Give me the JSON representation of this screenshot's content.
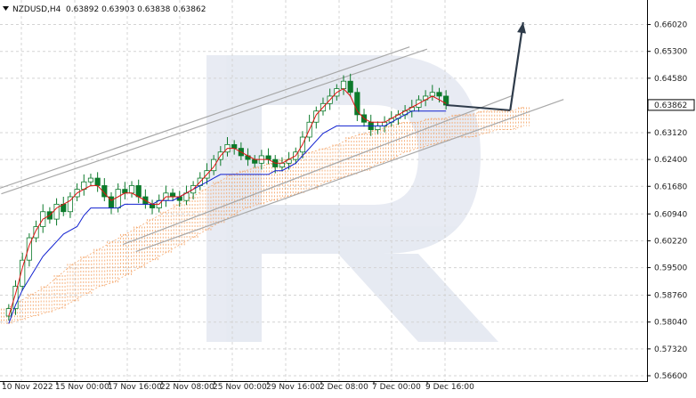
{
  "header": {
    "symbol": "NZDUSD,H4",
    "ohlc": "0.63892 0.63903 0.63838 0.63862"
  },
  "chart_data": {
    "type": "candlestick",
    "title": "NZDUSD,H4",
    "ylim": [
      0.566,
      0.662
    ],
    "y_ticks": [
      "0.66020",
      "0.65300",
      "0.64580",
      "0.63862",
      "0.63120",
      "0.62400",
      "0.61680",
      "0.60940",
      "0.60220",
      "0.59500",
      "0.58760",
      "0.58040",
      "0.57320",
      "0.56600"
    ],
    "y_tick_values": [
      0.6602,
      0.653,
      0.6458,
      0.63862,
      0.6312,
      0.624,
      0.6168,
      0.6094,
      0.6022,
      0.595,
      0.5876,
      0.5804,
      0.5732,
      0.566
    ],
    "current_price": "0.63862",
    "x_ticks": [
      "10 Nov 2022",
      "15 Nov 00:00",
      "17 Nov 16:00",
      "22 Nov 08:00",
      "25 Nov 00:00",
      "29 Nov 16:00",
      "2 Dec 08:00",
      "7 Dec 00:00",
      "9 Dec 16:00"
    ],
    "close_path": [
      0.584,
      0.59,
      0.597,
      0.603,
      0.606,
      0.61,
      0.608,
      0.612,
      0.61,
      0.614,
      0.616,
      0.618,
      0.619,
      0.617,
      0.614,
      0.611,
      0.616,
      0.615,
      0.617,
      0.614,
      0.612,
      0.611,
      0.613,
      0.615,
      0.614,
      0.613,
      0.615,
      0.617,
      0.619,
      0.621,
      0.624,
      0.626,
      0.628,
      0.627,
      0.625,
      0.624,
      0.623,
      0.625,
      0.624,
      0.622,
      0.623,
      0.624,
      0.626,
      0.63,
      0.634,
      0.637,
      0.639,
      0.641,
      0.643,
      0.645,
      0.642,
      0.636,
      0.634,
      0.632,
      0.633,
      0.634,
      0.635,
      0.636,
      0.637,
      0.638,
      0.64,
      0.641,
      0.642,
      0.641,
      0.6386
    ],
    "tenkan": [
      0.582,
      0.588,
      0.595,
      0.601,
      0.605,
      0.608,
      0.609,
      0.611,
      0.612,
      0.613,
      0.615,
      0.616,
      0.617,
      0.617,
      0.615,
      0.613,
      0.614,
      0.615,
      0.615,
      0.614,
      0.613,
      0.612,
      0.612,
      0.614,
      0.614,
      0.614,
      0.615,
      0.616,
      0.618,
      0.62,
      0.622,
      0.625,
      0.627,
      0.627,
      0.626,
      0.625,
      0.624,
      0.624,
      0.624,
      0.623,
      0.623,
      0.624,
      0.625,
      0.628,
      0.632,
      0.636,
      0.638,
      0.64,
      0.642,
      0.643,
      0.641,
      0.637,
      0.635,
      0.634,
      0.634,
      0.634,
      0.635,
      0.636,
      0.637,
      0.638,
      0.639,
      0.64,
      0.641,
      0.64,
      0.639
    ],
    "kijun": [
      0.58,
      0.585,
      0.589,
      0.592,
      0.595,
      0.598,
      0.6,
      0.602,
      0.604,
      0.605,
      0.606,
      0.609,
      0.611,
      0.611,
      0.611,
      0.611,
      0.611,
      0.612,
      0.612,
      0.612,
      0.612,
      0.612,
      0.613,
      0.613,
      0.613,
      0.614,
      0.615,
      0.616,
      0.617,
      0.618,
      0.619,
      0.62,
      0.62,
      0.62,
      0.62,
      0.62,
      0.62,
      0.62,
      0.62,
      0.621,
      0.621,
      0.622,
      0.623,
      0.625,
      0.627,
      0.629,
      0.631,
      0.632,
      0.633,
      0.633,
      0.633,
      0.633,
      0.633,
      0.633,
      0.633,
      0.633,
      0.634,
      0.635,
      0.636,
      0.637,
      0.637,
      0.637,
      0.637,
      0.637,
      0.637
    ],
    "cloud_a": [
      0.584,
      0.586,
      0.588,
      0.59,
      0.593,
      0.596,
      0.598,
      0.6,
      0.602,
      0.604,
      0.606,
      0.608,
      0.61,
      0.612,
      0.614,
      0.616,
      0.618,
      0.62,
      0.621,
      0.622,
      0.623,
      0.624,
      0.625,
      0.626,
      0.627,
      0.628,
      0.63,
      0.631,
      0.632,
      0.633,
      0.634,
      0.634,
      0.635,
      0.635,
      0.636,
      0.636,
      0.637,
      0.637,
      0.637,
      0.638
    ],
    "cloud_b": [
      0.58,
      0.581,
      0.582,
      0.583,
      0.584,
      0.586,
      0.588,
      0.59,
      0.591,
      0.593,
      0.595,
      0.597,
      0.599,
      0.601,
      0.603,
      0.605,
      0.607,
      0.609,
      0.611,
      0.612,
      0.613,
      0.614,
      0.615,
      0.616,
      0.618,
      0.619,
      0.62,
      0.621,
      0.623,
      0.624,
      0.626,
      0.627,
      0.628,
      0.629,
      0.63,
      0.63,
      0.631,
      0.632,
      0.632,
      0.633
    ],
    "annotations": {
      "arrow_from": [
        0.7885,
        0.6372
      ],
      "arrow_to": [
        0.8085,
        0.6608
      ]
    },
    "watermark": "R"
  },
  "colors": {
    "bull": "#0c7a2b",
    "bear": "#0c7a2b",
    "tenkan": "#e01010",
    "kijun": "#1020d0",
    "cloud": "#f4a060",
    "trend": "#a8a8a8",
    "arrow": "#2e3b4a",
    "price_tag_bg": "#ffffff"
  }
}
